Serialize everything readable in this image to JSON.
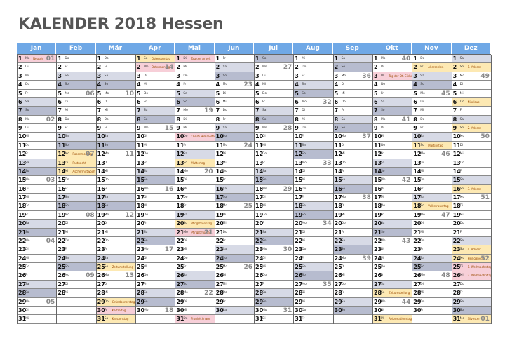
{
  "title": "KALENDER 2018 Hessen",
  "months": [
    "Jan",
    "Feb",
    "Mär",
    "Apr",
    "Mai",
    "Jun",
    "Jul",
    "Aug",
    "Sep",
    "Okt",
    "Nov",
    "Dez"
  ],
  "weekday_abbr": [
    "Mo",
    "Di",
    "Mi",
    "Do",
    "Fr",
    "Sa",
    "So"
  ],
  "colors": {
    "header": "#6fa8e6",
    "saturday": "#d7dae6",
    "sunday": "#b7bccf",
    "holiday": "#fde9b3",
    "holiday_pink": "#f7cfd8"
  },
  "holidays": [
    {
      "m": 0,
      "d": 1,
      "label": "Neujahr",
      "style": "pink"
    },
    {
      "m": 1,
      "d": 12,
      "label": "Rosenmontag"
    },
    {
      "m": 1,
      "d": 13,
      "label": "Fastnacht"
    },
    {
      "m": 1,
      "d": 14,
      "label": "Aschermittwoch"
    },
    {
      "m": 2,
      "d": 25,
      "label": "Zeitumstellung"
    },
    {
      "m": 2,
      "d": 29,
      "label": "Gründonnerstag"
    },
    {
      "m": 2,
      "d": 30,
      "label": "Karfreitag",
      "style": "pink"
    },
    {
      "m": 2,
      "d": 31,
      "label": "Karsamstag"
    },
    {
      "m": 3,
      "d": 1,
      "label": "Ostersonntag"
    },
    {
      "m": 3,
      "d": 2,
      "label": "Ostermontag",
      "style": "pink"
    },
    {
      "m": 4,
      "d": 1,
      "label": "Tag der Arbeit",
      "style": "pink"
    },
    {
      "m": 4,
      "d": 10,
      "label": "Christi Himmelfahrt",
      "style": "pink"
    },
    {
      "m": 4,
      "d": 13,
      "label": "Muttertag"
    },
    {
      "m": 4,
      "d": 20,
      "label": "Pfingstsonntag"
    },
    {
      "m": 4,
      "d": 21,
      "label": "Pfingstmontag",
      "style": "pink"
    },
    {
      "m": 4,
      "d": 31,
      "label": "Fronleichnam",
      "style": "pink"
    },
    {
      "m": 9,
      "d": 3,
      "label": "Tag der Dt. Einheit",
      "style": "pink"
    },
    {
      "m": 9,
      "d": 28,
      "label": "Zeitumstellung"
    },
    {
      "m": 9,
      "d": 31,
      "label": "Reformationstag"
    },
    {
      "m": 10,
      "d": 2,
      "label": "Allerseelen"
    },
    {
      "m": 10,
      "d": 11,
      "label": "Martinstag"
    },
    {
      "m": 10,
      "d": 18,
      "label": "Volkstrauertag"
    },
    {
      "m": 11,
      "d": 2,
      "label": "1. Advent"
    },
    {
      "m": 11,
      "d": 6,
      "label": "Nikolaus"
    },
    {
      "m": 11,
      "d": 9,
      "label": "2. Advent"
    },
    {
      "m": 11,
      "d": 16,
      "label": "3. Advent"
    },
    {
      "m": 11,
      "d": 23,
      "label": "4. Advent"
    },
    {
      "m": 11,
      "d": 24,
      "label": "Heiligabend"
    },
    {
      "m": 11,
      "d": 25,
      "label": "1. Weihnachtstag",
      "style": "pink"
    },
    {
      "m": 11,
      "d": 26,
      "label": "2. Weihnachtstag",
      "style": "pink"
    },
    {
      "m": 11,
      "d": 31,
      "label": "Silvester"
    }
  ]
}
